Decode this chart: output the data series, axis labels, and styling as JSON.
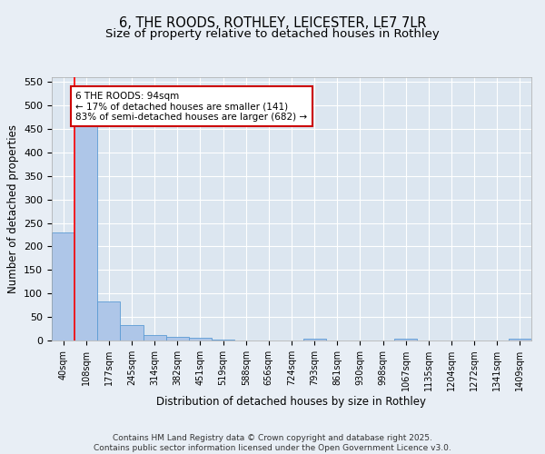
{
  "title1": "6, THE ROODS, ROTHLEY, LEICESTER, LE7 7LR",
  "title2": "Size of property relative to detached houses in Rothley",
  "xlabel": "Distribution of detached houses by size in Rothley",
  "ylabel": "Number of detached properties",
  "categories": [
    "40sqm",
    "108sqm",
    "177sqm",
    "245sqm",
    "314sqm",
    "382sqm",
    "451sqm",
    "519sqm",
    "588sqm",
    "656sqm",
    "724sqm",
    "793sqm",
    "861sqm",
    "930sqm",
    "998sqm",
    "1067sqm",
    "1135sqm",
    "1204sqm",
    "1272sqm",
    "1341sqm",
    "1409sqm"
  ],
  "values": [
    230,
    455,
    83,
    33,
    12,
    8,
    6,
    2,
    0,
    0,
    0,
    3,
    0,
    0,
    0,
    4,
    0,
    0,
    0,
    0,
    4
  ],
  "bar_color": "#aec6e8",
  "bar_edge_color": "#5b9bd5",
  "annotation_text": "6 THE ROODS: 94sqm\n← 17% of detached houses are smaller (141)\n83% of semi-detached houses are larger (682) →",
  "annotation_box_color": "#ffffff",
  "annotation_box_edge": "#cc0000",
  "ylim": [
    0,
    560
  ],
  "yticks": [
    0,
    50,
    100,
    150,
    200,
    250,
    300,
    350,
    400,
    450,
    500,
    550
  ],
  "footer": "Contains HM Land Registry data © Crown copyright and database right 2025.\nContains public sector information licensed under the Open Government Licence v3.0.",
  "bg_color": "#e8eef5",
  "plot_bg_color": "#dce6f0",
  "grid_color": "#ffffff",
  "title_fontsize": 10.5,
  "subtitle_fontsize": 9.5,
  "tick_fontsize": 7,
  "label_fontsize": 8.5,
  "footer_fontsize": 6.5
}
